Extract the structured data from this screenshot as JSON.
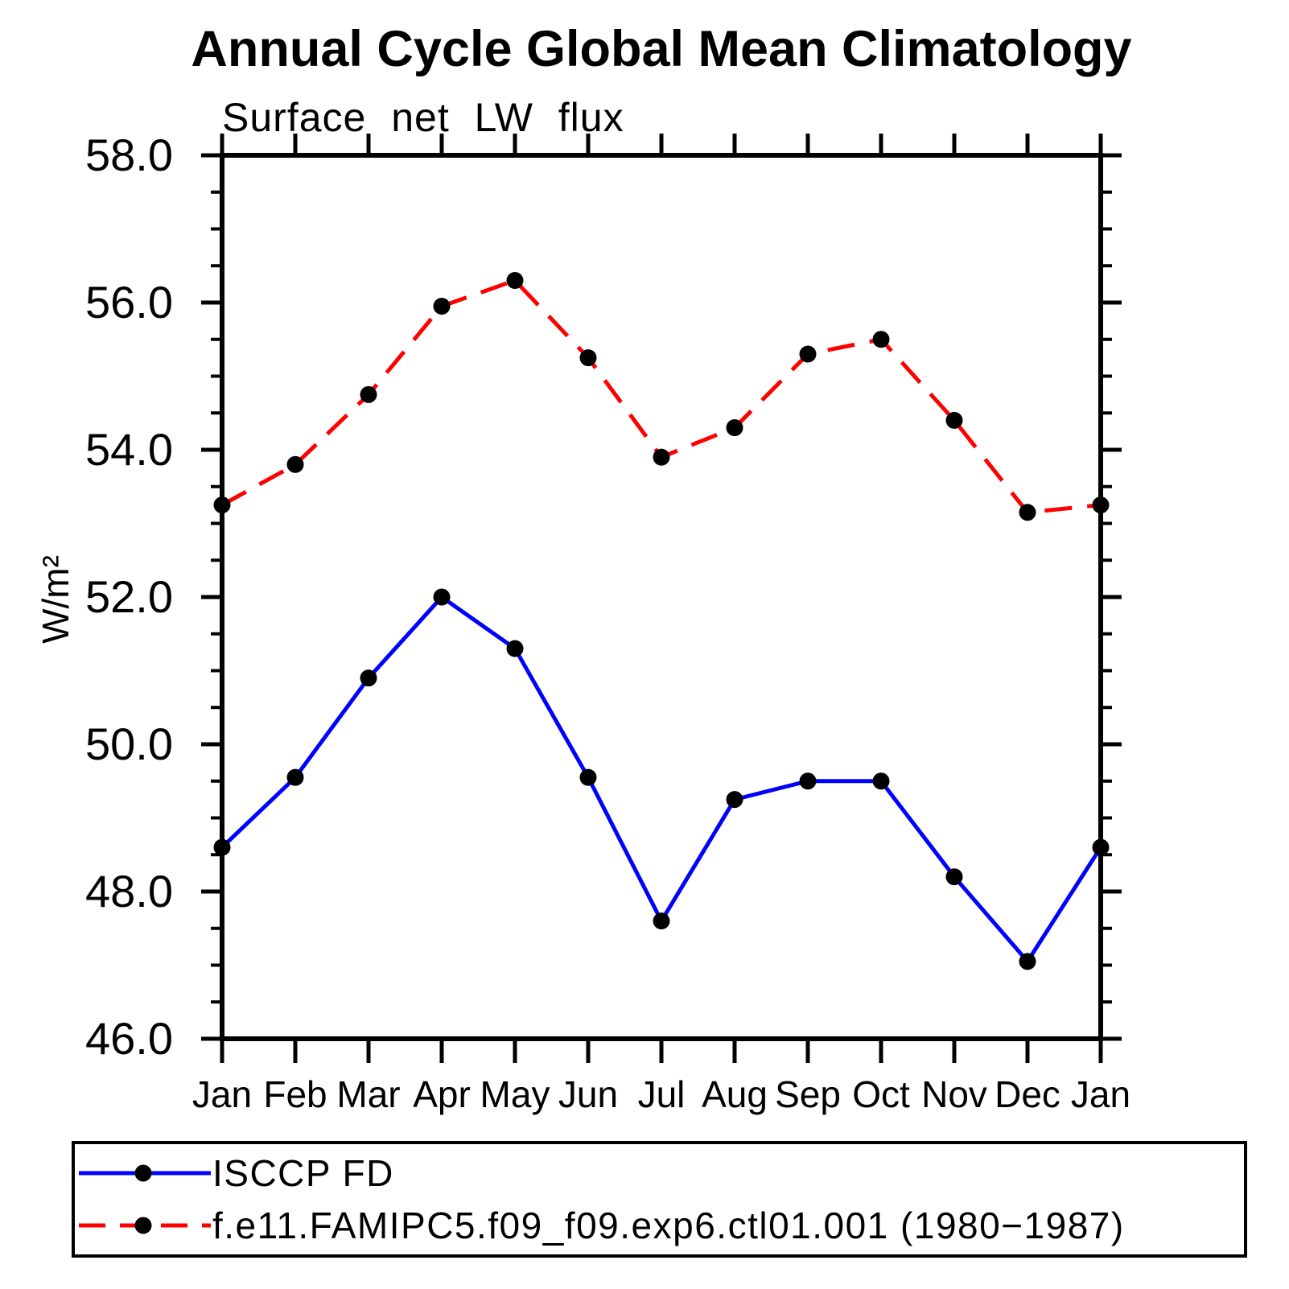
{
  "chart_data": {
    "type": "line",
    "title": "Annual Cycle Global Mean Climatology",
    "subtitle": "Surface net LW flux",
    "ylabel": "W/m²",
    "x_categories": [
      "Jan",
      "Feb",
      "Mar",
      "Apr",
      "May",
      "Jun",
      "Jul",
      "Aug",
      "Sep",
      "Oct",
      "Nov",
      "Dec",
      "Jan"
    ],
    "ylim": [
      46.0,
      58.0
    ],
    "ytick_major": [
      46.0,
      48.0,
      50.0,
      52.0,
      54.0,
      56.0,
      58.0
    ],
    "ytick_labels": [
      "46.0",
      "48.0",
      "50.0",
      "52.0",
      "54.0",
      "56.0",
      "58.0"
    ],
    "ytick_minor_step": 0.5,
    "grid": "off",
    "legend_position": "bottom",
    "series": [
      {
        "name": "ISCCP FD",
        "color": "#0000ff",
        "style": "solid",
        "marker": "circle",
        "marker_color": "#000000",
        "values": [
          48.6,
          49.55,
          50.9,
          52.0,
          51.3,
          49.55,
          47.6,
          49.25,
          49.5,
          49.5,
          48.2,
          47.05,
          48.6
        ]
      },
      {
        "name": "f.e11.FAMIPC5.f09_f09.exp6.ctl01.001 (1980−1987)",
        "color": "#ff0000",
        "style": "dashed",
        "marker": "circle",
        "marker_color": "#000000",
        "values": [
          53.25,
          53.8,
          54.75,
          55.95,
          56.3,
          55.25,
          53.9,
          54.3,
          55.3,
          55.5,
          54.4,
          53.15,
          53.25
        ]
      }
    ]
  }
}
